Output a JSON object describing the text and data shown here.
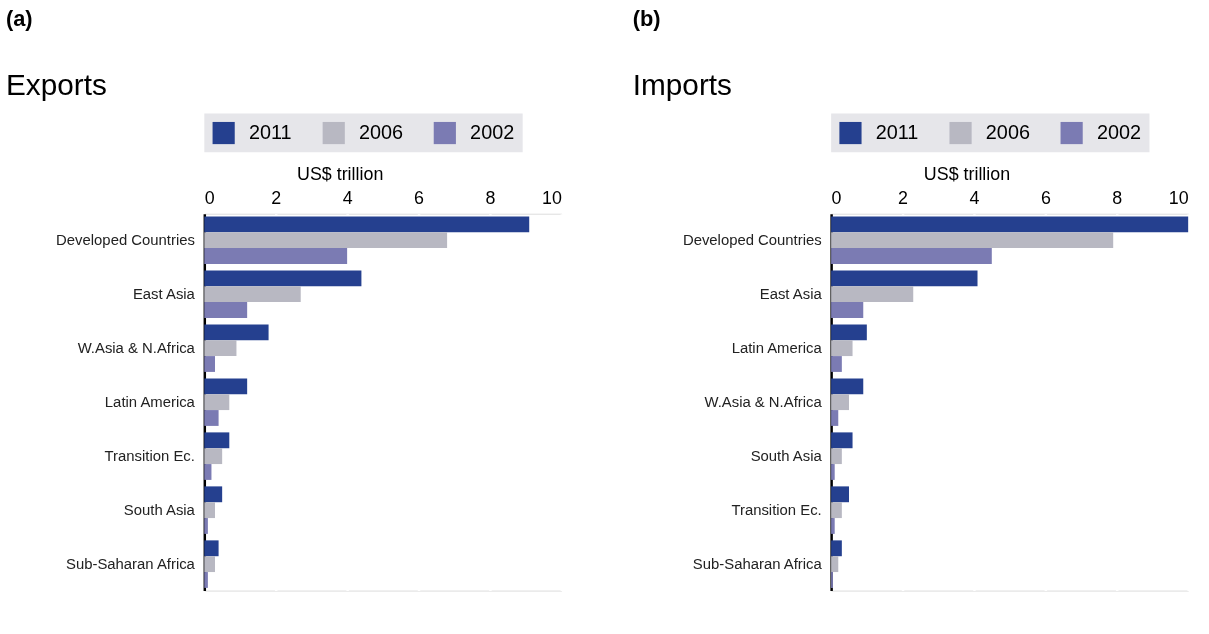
{
  "chart_data": [
    {
      "type": "bar",
      "orientation": "horizontal",
      "title": "Exports",
      "xlabel": "US$ trillion",
      "annotations": [
        "(a)"
      ],
      "categories": [
        "Developed Countries",
        "East Asia",
        "W.Asia & N.Africa",
        "Latin America",
        "Transition Ec.",
        "South Asia",
        "Sub-Saharan Africa"
      ],
      "series": [
        {
          "name": "2011",
          "color": "#25408f",
          "values": [
            9.1,
            4.4,
            1.8,
            1.2,
            0.7,
            0.5,
            0.4
          ]
        },
        {
          "name": "2006",
          "color": "#b8b8c2",
          "values": [
            6.8,
            2.7,
            0.9,
            0.7,
            0.5,
            0.3,
            0.3
          ]
        },
        {
          "name": "2002",
          "color": "#7b7bb3",
          "values": [
            4.0,
            1.2,
            0.3,
            0.4,
            0.2,
            0.1,
            0.1
          ]
        }
      ],
      "xlim": [
        0,
        10
      ],
      "xticks": [
        0,
        2,
        4,
        6,
        8,
        10
      ],
      "grid": "x",
      "legend": "top"
    },
    {
      "type": "bar",
      "orientation": "horizontal",
      "title": "Imports",
      "xlabel": "US$ trillion",
      "annotations": [
        "(b)"
      ],
      "categories": [
        "Developed Countries",
        "East Asia",
        "Latin America",
        "W.Asia & N.Africa",
        "South Asia",
        "Transition Ec.",
        "Sub-Saharan Africa"
      ],
      "series": [
        {
          "name": "2011",
          "color": "#25408f",
          "values": [
            10.0,
            4.1,
            1.0,
            0.9,
            0.6,
            0.5,
            0.3
          ]
        },
        {
          "name": "2006",
          "color": "#b8b8c2",
          "values": [
            7.9,
            2.3,
            0.6,
            0.5,
            0.3,
            0.3,
            0.2
          ]
        },
        {
          "name": "2002",
          "color": "#7b7bb3",
          "values": [
            4.5,
            0.9,
            0.3,
            0.2,
            0.1,
            0.1,
            0.05
          ]
        }
      ],
      "xlim": [
        0,
        10
      ],
      "xticks": [
        0,
        2,
        4,
        6,
        8,
        10
      ],
      "grid": "x",
      "legend": "top"
    }
  ]
}
